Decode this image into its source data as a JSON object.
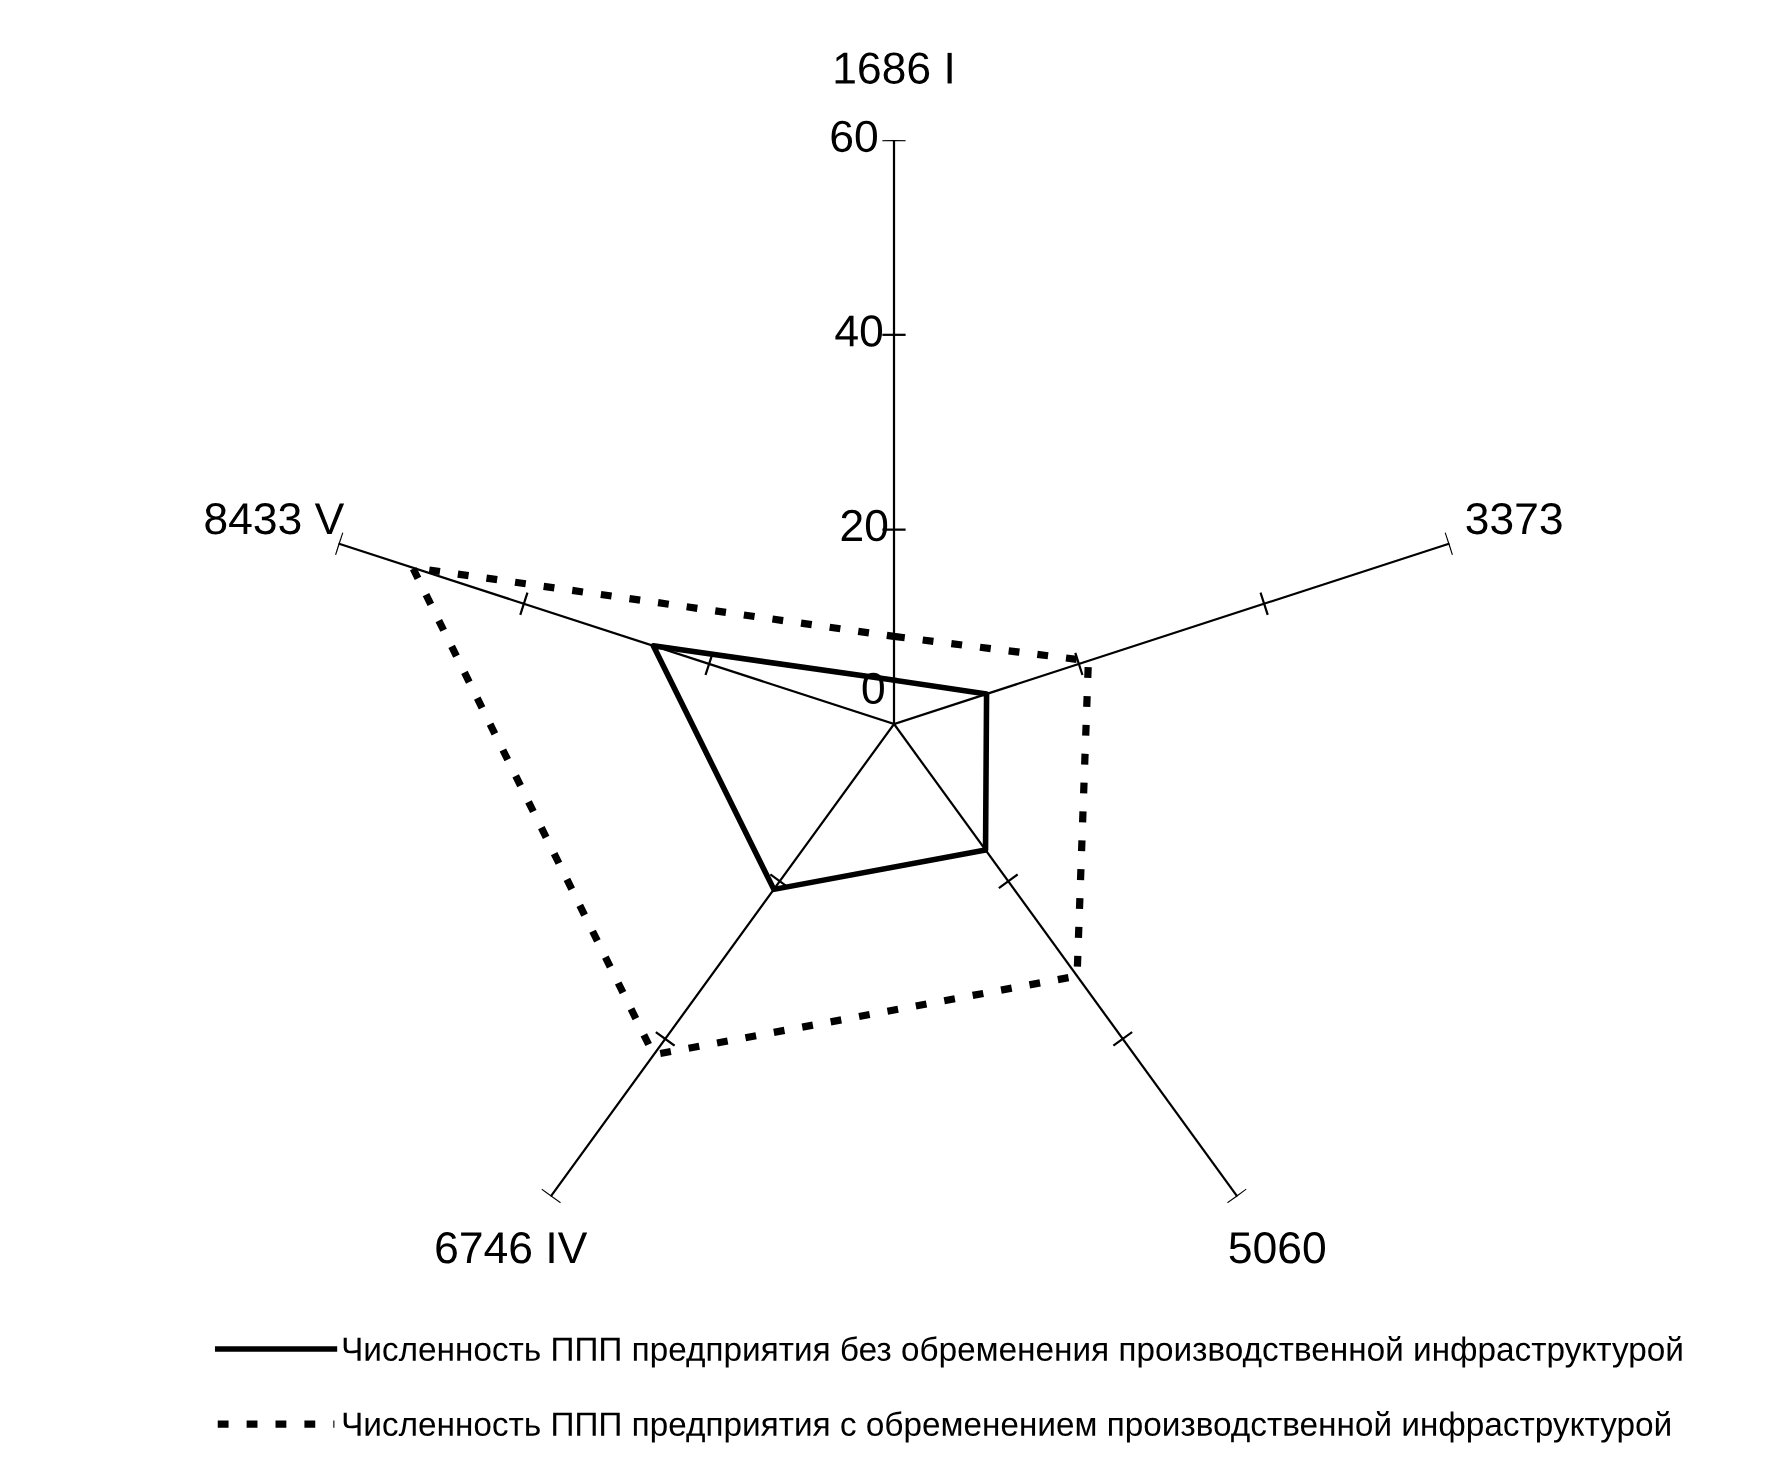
{
  "chart_data": {
    "type": "radar",
    "categories": [
      "1686 I",
      "3373",
      "5060",
      "6746 IV",
      "8433 V"
    ],
    "ylim": [
      0,
      60
    ],
    "yticks": [
      0,
      20,
      40,
      60
    ],
    "grid": false,
    "legend": "bottom",
    "series": [
      {
        "name": "Численность ППП предприятия без обременения производственной инфраструктурой",
        "color": "#000000",
        "line_style": "solid",
        "values": [
          4.5,
          10,
          16,
          21,
          26
        ]
      },
      {
        "name": "Численность ППП предприятия с обременением производственной инфраструктурой",
        "color": "#000000",
        "line_style": "dotted",
        "values": [
          9,
          21,
          32,
          42,
          52
        ]
      }
    ]
  }
}
